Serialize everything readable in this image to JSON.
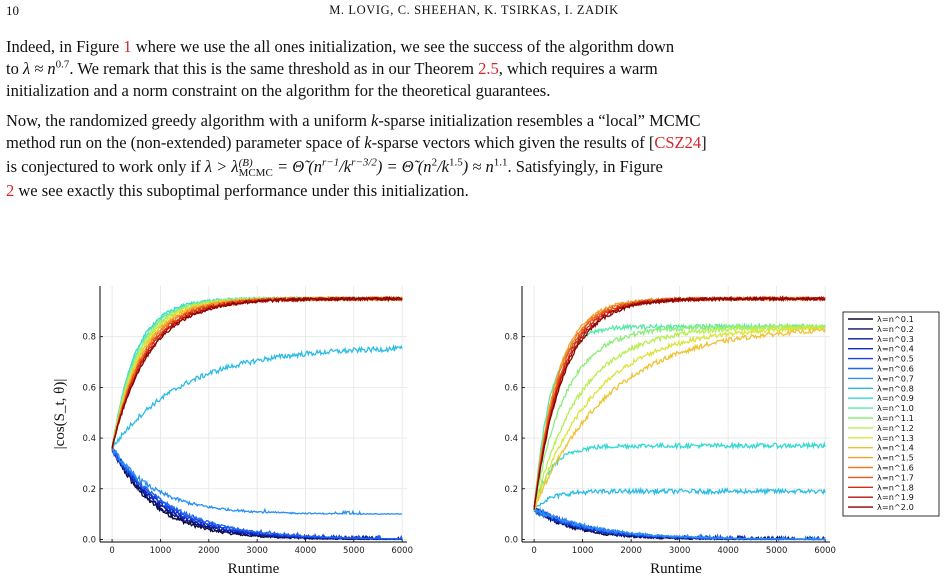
{
  "header": {
    "page_number": "10",
    "authors": "M. LOVIG, C. SHEEHAN, K. TSIRKAS, I. ZADIK"
  },
  "paragraph1": {
    "l1a": "Indeed, in Figure ",
    "l1_ref_fig": "1",
    "l1b": " where we use the all ones initialization, we see the success of the algorithm down",
    "l2a": "to ",
    "l2_math": "λ ≈ n",
    "l2_exp": "0.7",
    "l2b": ". We remark that this is the same threshold as in our Theorem ",
    "l2_ref_thm": "2.5",
    "l2c": ", which requires a warm",
    "l3": "initialization and a norm constraint on the algorithm for the theoretical guarantees."
  },
  "paragraph2": {
    "l1a": "Now, the randomized greedy algorithm with a uniform ",
    "l1_k": "k",
    "l1b": "-sparse initialization resembles a “local” MCMC",
    "l2a": "method run on the (non-extended) parameter space of ",
    "l2_k": "k",
    "l2b": "-sparse vectors which given the results of [",
    "l2_ref": "CSZ24",
    "l2c": "]",
    "l3a": "is conjectured to work only if ",
    "l3_lambda": "λ > λ",
    "l3_sup": "(B)",
    "l3_sub": "MCMC",
    "l3_eq1": " = Θ̃ (n",
    "l3_e1": "r−1",
    "l3_mid": "/k",
    "l3_e2": "r−3/2",
    "l3_eq2": ") = Θ̃ (n",
    "l3_e3": "2",
    "l3_mid2": "/k",
    "l3_e4": "1.5",
    "l3_eq3": ") ≈ n",
    "l3_e5": "1.1",
    "l3b": ". Satisfyingly, in Figure",
    "l4_ref": "2",
    "l4": " we see exactly this suboptimal performance under this initialization."
  },
  "chart_data": [
    {
      "type": "line",
      "title": "",
      "xlabel": "Runtime",
      "ylabel": "|cos(S_t, θ)|",
      "xlim": [
        -250,
        6100
      ],
      "ylim": [
        -0.01,
        1.0
      ],
      "xticks": [
        "0",
        "1000",
        "2000",
        "3000",
        "4000",
        "5000",
        "6000"
      ],
      "yticks": [
        "0.0",
        "0.2",
        "0.4",
        "0.6",
        "0.8"
      ],
      "grid": true,
      "legend": "none",
      "series_groups": [
        {
          "lambdas": [
            "λ=n^0.1",
            "λ=n^0.2",
            "λ=n^0.3",
            "λ=n^0.4",
            "λ=n^0.5",
            "λ=n^0.6"
          ],
          "start": 0.36,
          "final": 0.0,
          "behavior": "decay"
        },
        {
          "lambdas": [
            "λ=n^0.7"
          ],
          "start": 0.36,
          "final": 0.1,
          "behavior": "decay"
        },
        {
          "lambdas": [
            "λ=n^0.8"
          ],
          "start": 0.36,
          "final": 0.76,
          "behavior": "slow-rise"
        },
        {
          "lambdas": [
            "λ=n^0.9",
            "λ=n^1.0",
            "λ=n^1.1",
            "λ=n^1.2",
            "λ=n^1.3",
            "λ=n^1.4",
            "λ=n^1.5",
            "λ=n^1.6",
            "λ=n^1.7",
            "λ=n^1.8",
            "λ=n^1.9",
            "λ=n^2.0"
          ],
          "start": 0.36,
          "final": 0.95,
          "behavior": "fast-rise"
        }
      ]
    },
    {
      "type": "line",
      "title": "",
      "xlabel": "Runtime",
      "ylabel": "",
      "xlim": [
        -250,
        6100
      ],
      "ylim": [
        -0.01,
        1.0
      ],
      "xticks": [
        "0",
        "1000",
        "2000",
        "3000",
        "4000",
        "5000",
        "6000"
      ],
      "yticks": [
        "0.0",
        "0.2",
        "0.4",
        "0.6",
        "0.8"
      ],
      "grid": true,
      "legend": "right",
      "series_groups": [
        {
          "lambdas": [
            "λ=n^0.1",
            "λ=n^0.2",
            "λ=n^0.3",
            "λ=n^0.4",
            "λ=n^0.5",
            "λ=n^0.6",
            "λ=n^0.7"
          ],
          "start": 0.12,
          "final": 0.0,
          "behavior": "decay"
        },
        {
          "lambdas": [
            "λ=n^0.8"
          ],
          "start": 0.12,
          "final": 0.19,
          "behavior": "plateau"
        },
        {
          "lambdas": [
            "λ=n^0.9"
          ],
          "start": 0.12,
          "final": 0.37,
          "behavior": "plateau"
        },
        {
          "lambdas": [
            "λ=n^1.0",
            "λ=n^1.1",
            "λ=n^1.2",
            "λ=n^1.3",
            "λ=n^1.4"
          ],
          "start": 0.12,
          "final": 0.84,
          "behavior": "plateau"
        },
        {
          "lambdas": [
            "λ=n^1.5",
            "λ=n^1.6",
            "λ=n^1.7",
            "λ=n^1.8",
            "λ=n^1.9",
            "λ=n^2.0"
          ],
          "start": 0.12,
          "final": 0.95,
          "behavior": "fast-rise"
        }
      ]
    }
  ],
  "legend": {
    "entries": [
      "λ=n^0.1",
      "λ=n^0.2",
      "λ=n^0.3",
      "λ=n^0.4",
      "λ=n^0.5",
      "λ=n^0.6",
      "λ=n^0.7",
      "λ=n^0.8",
      "λ=n^0.9",
      "λ=n^1.0",
      "λ=n^1.1",
      "λ=n^1.2",
      "λ=n^1.3",
      "λ=n^1.4",
      "λ=n^1.5",
      "λ=n^1.6",
      "λ=n^1.7",
      "λ=n^1.8",
      "λ=n^1.9",
      "λ=n^2.0"
    ],
    "colors": [
      "#0a0a30",
      "#0b1066",
      "#0c1a9a",
      "#0e28c8",
      "#1440e6",
      "#1e66f0",
      "#2b90f2",
      "#2bbce6",
      "#35d8d2",
      "#5ae8a8",
      "#8aee78",
      "#b8ee52",
      "#dce43e",
      "#f0c233",
      "#f3a12d",
      "#ef7c25",
      "#e6541c",
      "#d42d12",
      "#b81208",
      "#8a0303"
    ]
  }
}
